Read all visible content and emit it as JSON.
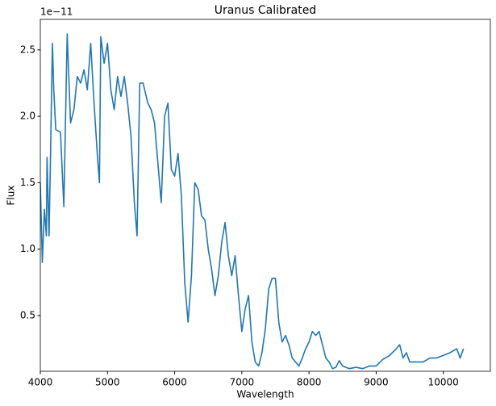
{
  "chart_data": {
    "type": "line",
    "title": "Uranus Calibrated",
    "x_label": "Wavelength",
    "y_label": "Flux",
    "y_offset_label": "1e−11",
    "x": [
      4000,
      4030,
      4060,
      4090,
      4100,
      4130,
      4150,
      4180,
      4200,
      4230,
      4300,
      4350,
      4400,
      4450,
      4500,
      4550,
      4600,
      4650,
      4700,
      4750,
      4800,
      4850,
      4880,
      4900,
      4950,
      5000,
      5050,
      5100,
      5150,
      5200,
      5250,
      5300,
      5350,
      5400,
      5440,
      5480,
      5530,
      5600,
      5650,
      5700,
      5750,
      5800,
      5850,
      5900,
      5950,
      6000,
      6050,
      6100,
      6150,
      6200,
      6250,
      6300,
      6350,
      6400,
      6450,
      6500,
      6550,
      6600,
      6650,
      6700,
      6750,
      6800,
      6850,
      6900,
      6950,
      7000,
      7050,
      7100,
      7150,
      7200,
      7250,
      7300,
      7350,
      7400,
      7450,
      7500,
      7550,
      7600,
      7650,
      7700,
      7750,
      7800,
      7850,
      7900,
      7950,
      8000,
      8050,
      8100,
      8150,
      8200,
      8250,
      8300,
      8350,
      8400,
      8450,
      8500,
      8600,
      8700,
      8800,
      8900,
      9000,
      9100,
      9200,
      9300,
      9350,
      9400,
      9450,
      9500,
      9600,
      9700,
      9800,
      9900,
      10000,
      10100,
      10200,
      10250,
      10300
    ],
    "series": [
      {
        "color": "#1f77b4",
        "values": [
          1.5,
          0.9,
          1.3,
          1.1,
          1.69,
          1.1,
          1.65,
          2.55,
          2.2,
          1.9,
          1.88,
          1.32,
          2.62,
          1.95,
          2.05,
          2.3,
          2.25,
          2.35,
          2.2,
          2.55,
          2.1,
          1.7,
          1.5,
          2.6,
          2.4,
          2.55,
          2.2,
          2.05,
          2.3,
          2.15,
          2.3,
          2.1,
          1.85,
          1.35,
          1.1,
          2.25,
          2.25,
          2.1,
          2.05,
          1.95,
          1.65,
          1.35,
          2.0,
          2.1,
          1.6,
          1.55,
          1.72,
          1.4,
          0.75,
          0.45,
          0.8,
          1.5,
          1.45,
          1.25,
          1.22,
          1.0,
          0.85,
          0.65,
          0.8,
          1.05,
          1.2,
          0.95,
          0.8,
          0.95,
          0.65,
          0.38,
          0.55,
          0.65,
          0.3,
          0.15,
          0.12,
          0.22,
          0.4,
          0.7,
          0.78,
          0.78,
          0.45,
          0.3,
          0.35,
          0.28,
          0.18,
          0.15,
          0.12,
          0.18,
          0.25,
          0.3,
          0.38,
          0.35,
          0.38,
          0.28,
          0.18,
          0.15,
          0.1,
          0.11,
          0.16,
          0.12,
          0.1,
          0.11,
          0.1,
          0.12,
          0.12,
          0.17,
          0.2,
          0.25,
          0.28,
          0.18,
          0.22,
          0.15,
          0.15,
          0.15,
          0.18,
          0.18,
          0.2,
          0.22,
          0.25,
          0.18,
          0.25
        ]
      }
    ],
    "xlim": [
      4000,
      10700
    ],
    "xticks": [
      4000,
      5000,
      6000,
      7000,
      8000,
      9000,
      10000
    ],
    "ylim": [
      0.08,
      2.73
    ],
    "yticks": [
      0.5,
      {
        "value": 1,
        "label": "1.0"
      },
      1.5,
      {
        "value": 2,
        "label": "2.0"
      },
      2.5
    ]
  }
}
